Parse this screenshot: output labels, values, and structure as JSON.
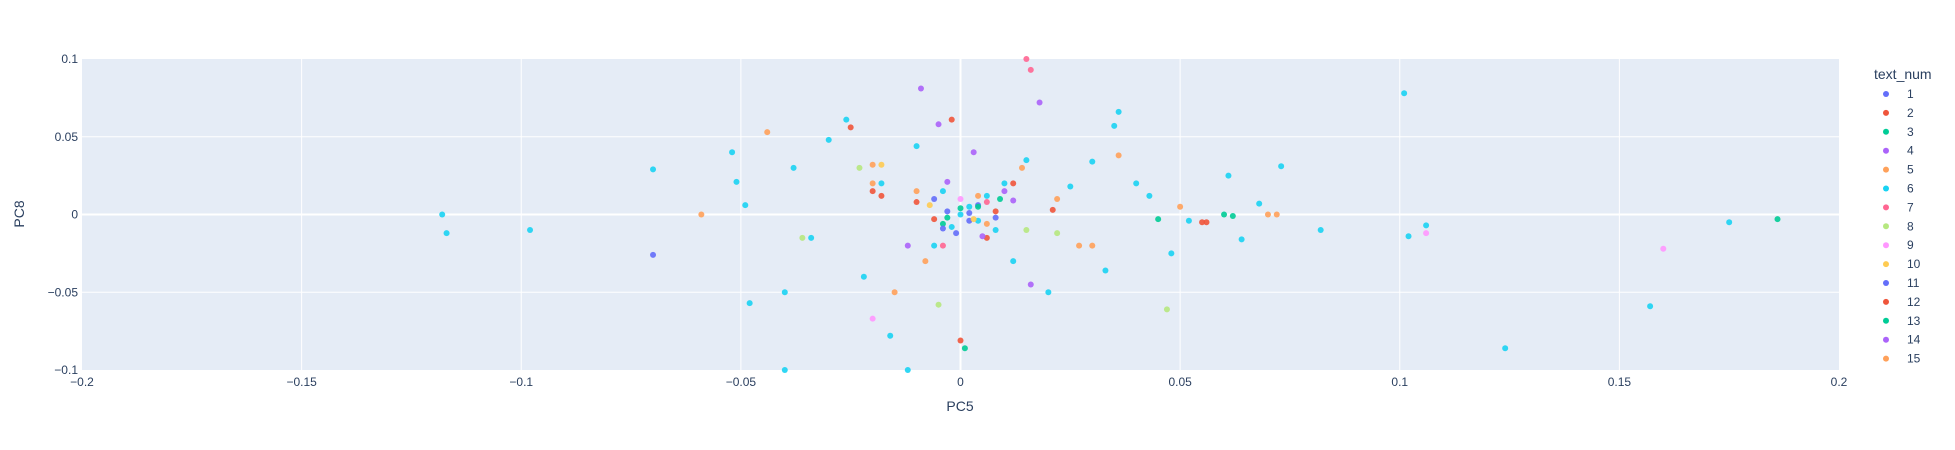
{
  "chart_data": {
    "type": "scatter",
    "title": "",
    "xlabel": "PC5",
    "ylabel": "PC8",
    "xlim": [
      -0.2,
      0.2
    ],
    "ylim": [
      -0.1,
      0.1
    ],
    "x_ticks": [
      -0.2,
      -0.15,
      -0.1,
      -0.05,
      0,
      0.05,
      0.1,
      0.15,
      0.2
    ],
    "x_tick_labels": [
      "−0.2",
      "−0.15",
      "−0.1",
      "−0.05",
      "0",
      "0.05",
      "0.1",
      "0.15",
      "0.2"
    ],
    "y_ticks": [
      -0.1,
      -0.05,
      0,
      0.05,
      0.1
    ],
    "y_tick_labels": [
      "−0.1",
      "−0.05",
      "0",
      "0.05",
      "0.1"
    ],
    "grid": true,
    "legend": {
      "title": "text_num",
      "placement": "right"
    },
    "series": [
      {
        "name": "1",
        "color": "#636efa",
        "points": [
          [
            -0.003,
            0.002
          ],
          [
            0.002,
            -0.004
          ],
          [
            -0.006,
            0.01
          ],
          [
            0.004,
            0.006
          ],
          [
            -0.001,
            -0.012
          ],
          [
            0.008,
            -0.002
          ]
        ]
      },
      {
        "name": "2",
        "color": "#EF553B",
        "points": [
          [
            -0.002,
            0.061
          ],
          [
            0.0,
            -0.081
          ],
          [
            0.056,
            -0.005
          ],
          [
            0.012,
            0.02
          ],
          [
            -0.01,
            0.008
          ],
          [
            0.006,
            -0.015
          ],
          [
            -0.018,
            0.012
          ],
          [
            0.021,
            0.003
          ]
        ]
      },
      {
        "name": "3",
        "color": "#00cc96",
        "points": [
          [
            0.001,
            -0.086
          ],
          [
            0.06,
            0.0
          ],
          [
            0.045,
            -0.003
          ],
          [
            0.004,
            0.005
          ],
          [
            -0.004,
            -0.006
          ],
          [
            0.009,
            0.01
          ]
        ]
      },
      {
        "name": "4",
        "color": "#ab63fa",
        "points": [
          [
            -0.009,
            0.081
          ],
          [
            0.018,
            0.072
          ],
          [
            -0.005,
            0.058
          ],
          [
            0.003,
            0.04
          ],
          [
            -0.012,
            -0.02
          ],
          [
            0.01,
            0.015
          ],
          [
            0.016,
            -0.045
          ]
        ]
      },
      {
        "name": "5",
        "color": "#FFA15A",
        "points": [
          [
            -0.044,
            0.053
          ],
          [
            -0.059,
            0.0
          ],
          [
            0.036,
            0.038
          ],
          [
            0.07,
            0.0
          ],
          [
            -0.015,
            -0.05
          ],
          [
            0.014,
            0.03
          ],
          [
            -0.02,
            0.02
          ],
          [
            0.03,
            -0.02
          ],
          [
            0.05,
            0.005
          ],
          [
            -0.008,
            -0.03
          ],
          [
            0.004,
            0.012
          ],
          [
            0.022,
            0.01
          ]
        ]
      },
      {
        "name": "6",
        "color": "#19d3f3",
        "points": [
          [
            -0.118,
            0.0
          ],
          [
            -0.117,
            -0.012
          ],
          [
            -0.098,
            -0.01
          ],
          [
            -0.07,
            0.029
          ],
          [
            -0.052,
            0.04
          ],
          [
            -0.051,
            0.021
          ],
          [
            -0.049,
            0.006
          ],
          [
            -0.048,
            -0.057
          ],
          [
            -0.04,
            -0.1
          ],
          [
            -0.04,
            -0.05
          ],
          [
            -0.038,
            0.03
          ],
          [
            -0.034,
            -0.015
          ],
          [
            -0.03,
            0.048
          ],
          [
            -0.026,
            0.061
          ],
          [
            -0.022,
            -0.04
          ],
          [
            -0.018,
            0.02
          ],
          [
            -0.016,
            -0.078
          ],
          [
            -0.012,
            -0.1
          ],
          [
            -0.01,
            0.044
          ],
          [
            -0.006,
            -0.02
          ],
          [
            -0.004,
            0.015
          ],
          [
            -0.002,
            -0.008
          ],
          [
            0.0,
            0.0
          ],
          [
            0.002,
            0.005
          ],
          [
            0.004,
            -0.004
          ],
          [
            0.006,
            0.012
          ],
          [
            0.008,
            -0.01
          ],
          [
            0.01,
            0.02
          ],
          [
            0.012,
            -0.03
          ],
          [
            0.015,
            0.035
          ],
          [
            0.02,
            -0.05
          ],
          [
            0.025,
            0.018
          ],
          [
            0.03,
            0.034
          ],
          [
            0.033,
            -0.036
          ],
          [
            0.035,
            0.057
          ],
          [
            0.036,
            0.066
          ],
          [
            0.04,
            0.02
          ],
          [
            0.043,
            0.012
          ],
          [
            0.048,
            -0.025
          ],
          [
            0.052,
            -0.004
          ],
          [
            0.061,
            0.025
          ],
          [
            0.064,
            -0.016
          ],
          [
            0.068,
            0.007
          ],
          [
            0.073,
            0.031
          ],
          [
            0.082,
            -0.01
          ],
          [
            0.101,
            0.078
          ],
          [
            0.102,
            -0.014
          ],
          [
            0.106,
            -0.007
          ],
          [
            0.124,
            -0.086
          ],
          [
            0.157,
            -0.059
          ],
          [
            0.175,
            -0.005
          ]
        ]
      },
      {
        "name": "7",
        "color": "#FF6692",
        "points": [
          [
            0.015,
            0.1
          ],
          [
            0.016,
            0.093
          ],
          [
            -0.004,
            -0.02
          ],
          [
            0.006,
            0.008
          ]
        ]
      },
      {
        "name": "8",
        "color": "#B6E880",
        "points": [
          [
            0.047,
            -0.061
          ],
          [
            -0.005,
            -0.058
          ],
          [
            -0.023,
            0.03
          ],
          [
            0.022,
            -0.012
          ],
          [
            -0.036,
            -0.015
          ],
          [
            0.015,
            -0.01
          ]
        ]
      },
      {
        "name": "9",
        "color": "#FF97FF",
        "points": [
          [
            0.106,
            -0.012
          ],
          [
            0.16,
            -0.022
          ],
          [
            -0.02,
            -0.067
          ],
          [
            0.0,
            0.01
          ]
        ]
      },
      {
        "name": "10",
        "color": "#FECB52",
        "points": [
          [
            -0.018,
            0.032
          ],
          [
            0.003,
            -0.003
          ],
          [
            -0.007,
            0.006
          ]
        ]
      },
      {
        "name": "11",
        "color": "#636efa",
        "points": [
          [
            -0.07,
            -0.026
          ],
          [
            0.002,
            0.001
          ],
          [
            -0.004,
            -0.009
          ]
        ]
      },
      {
        "name": "12",
        "color": "#EF553B",
        "points": [
          [
            -0.025,
            0.056
          ],
          [
            -0.02,
            0.015
          ],
          [
            0.055,
            -0.005
          ],
          [
            0.008,
            0.002
          ],
          [
            -0.006,
            -0.003
          ]
        ]
      },
      {
        "name": "13",
        "color": "#00cc96",
        "points": [
          [
            0.186,
            -0.003
          ],
          [
            0.062,
            -0.001
          ],
          [
            0.0,
            0.004
          ],
          [
            -0.003,
            -0.002
          ]
        ]
      },
      {
        "name": "14",
        "color": "#ab63fa",
        "points": [
          [
            -0.003,
            0.021
          ],
          [
            0.005,
            -0.014
          ],
          [
            0.012,
            0.009
          ]
        ]
      },
      {
        "name": "15",
        "color": "#FFA15A",
        "points": [
          [
            -0.02,
            0.032
          ],
          [
            0.072,
            0.0
          ],
          [
            0.027,
            -0.02
          ],
          [
            -0.01,
            0.015
          ],
          [
            0.006,
            -0.006
          ]
        ]
      }
    ]
  }
}
